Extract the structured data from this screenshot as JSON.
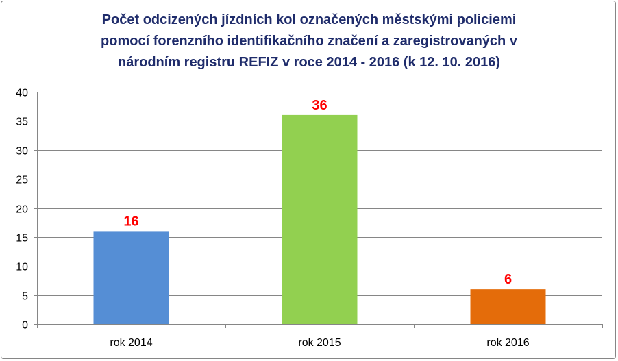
{
  "chart_data": {
    "type": "bar",
    "title_lines": [
      "Počet odcizených jízdních kol označených městskými policiemi",
      "pomocí forenzního identifikačního značení a zaregistrovaných v",
      "národním registru REFIZ v roce 2014 - 2016 (k 12. 10. 2016)"
    ],
    "categories": [
      "rok  2014",
      "rok  2015",
      "rok  2016"
    ],
    "values": [
      16,
      36,
      6
    ],
    "data_labels": [
      "16",
      "36",
      "6"
    ],
    "bar_colors": [
      "#558ED5",
      "#92D050",
      "#E46C0A"
    ],
    "data_label_color": "#FF0000",
    "title_color": "#1F2C6B",
    "xlabel": "",
    "ylabel": "",
    "ylim": [
      0,
      40
    ],
    "yticks": [
      0,
      5,
      10,
      15,
      20,
      25,
      30,
      35,
      40
    ],
    "grid": true,
    "legend": "none"
  }
}
